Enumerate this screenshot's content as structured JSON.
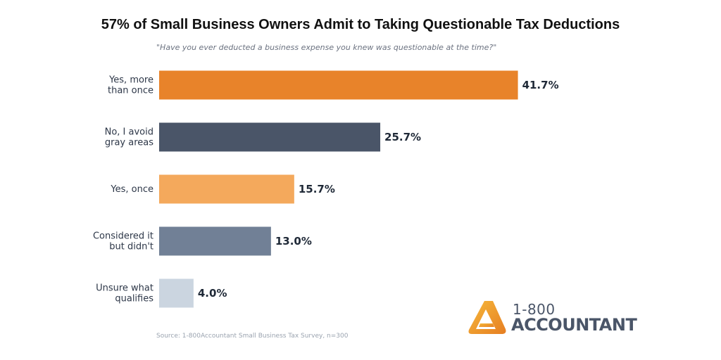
{
  "chart_data": {
    "type": "bar",
    "orientation": "horizontal",
    "title": "57% of Small Business Owners Admit to Taking Questionable Tax Deductions",
    "subtitle": "\"Have you ever deducted a business expense you knew was questionable at the time?\"",
    "categories": [
      [
        "Yes, more",
        "than once"
      ],
      [
        "No, I avoid",
        "gray areas"
      ],
      [
        "Yes, once"
      ],
      [
        "Considered it",
        "but didn't"
      ],
      [
        "Unsure what",
        "qualifies"
      ]
    ],
    "values": [
      41.7,
      25.7,
      15.7,
      13.0,
      4.0
    ],
    "value_labels": [
      "41.7%",
      "25.7%",
      "15.7%",
      "13.0%",
      "4.0%"
    ],
    "colors": [
      "#e8832a",
      "#4a5568",
      "#f4a95c",
      "#718096",
      "#cbd5e0"
    ],
    "xlim": [
      0,
      50
    ],
    "grid": false,
    "source": "Source: 1-800Accountant Small Business Tax Survey, n=300"
  },
  "logo": {
    "line1": "1-800",
    "line2": "ACCOUNTANT",
    "color": "#f39c12"
  }
}
